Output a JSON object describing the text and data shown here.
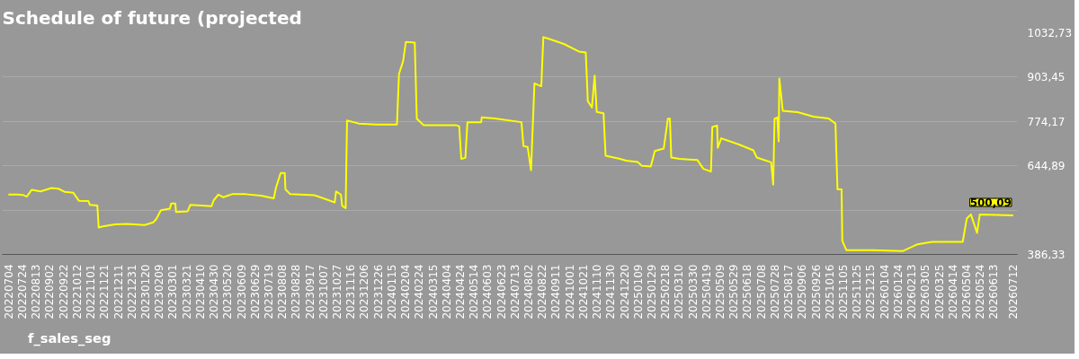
{
  "chart_data": {
    "type": "line",
    "title": "Schedule of future (projected",
    "x": [
      "2022-07-04",
      "2022-07-17",
      "2022-07-25",
      "2022-07-31",
      "2022-08-07",
      "2022-08-20",
      "2022-09-05",
      "2022-09-15",
      "2022-09-24",
      "2022-10-07",
      "2022-10-15",
      "2022-10-29",
      "2022-10-31",
      "2022-11-11",
      "2022-11-13",
      "2022-11-19",
      "2022-12-07",
      "2022-12-24",
      "2023-01-19",
      "2023-02-01",
      "2023-02-05",
      "2023-02-12",
      "2023-02-25",
      "2023-02-27",
      "2023-03-05",
      "2023-03-06",
      "2023-03-23",
      "2023-03-27",
      "2023-04-27",
      "2023-04-30",
      "2023-05-07",
      "2023-05-14",
      "2023-05-27",
      "2023-06-16",
      "2023-07-08",
      "2023-07-27",
      "2023-07-30",
      "2023-08-06",
      "2023-08-12",
      "2023-08-13",
      "2023-08-20",
      "2023-09-24",
      "2023-09-30",
      "2023-10-24",
      "2023-10-26",
      "2023-11-02",
      "2023-11-04",
      "2023-11-09",
      "2023-11-11",
      "2023-11-28",
      "2023-12-24",
      "2024-01-23",
      "2024-01-26",
      "2024-02-01",
      "2024-02-05",
      "2024-02-18",
      "2024-02-21",
      "2024-03-02",
      "2024-04-19",
      "2024-04-23",
      "2024-04-26",
      "2024-05-02",
      "2024-05-05",
      "2024-05-25",
      "2024-05-26",
      "2024-06-14",
      "2024-07-23",
      "2024-07-26",
      "2024-08-01",
      "2024-08-06",
      "2024-08-11",
      "2024-08-17",
      "2024-08-21",
      "2024-08-24",
      "2024-09-01",
      "2024-09-23",
      "2024-10-15",
      "2024-10-25",
      "2024-10-28",
      "2024-11-03",
      "2024-11-07",
      "2024-11-10",
      "2024-11-20",
      "2024-11-23",
      "2024-12-14",
      "2024-12-23",
      "2025-01-09",
      "2025-01-15",
      "2025-01-28",
      "2025-02-03",
      "2025-02-16",
      "2025-02-22",
      "2025-02-25",
      "2025-02-27",
      "2025-03-11",
      "2025-04-06",
      "2025-04-15",
      "2025-04-26",
      "2025-04-28",
      "2025-05-05",
      "2025-05-06",
      "2025-05-11",
      "2025-06-06",
      "2025-06-27",
      "2025-07-02",
      "2025-07-23",
      "2025-07-26",
      "2025-07-28",
      "2025-08-01",
      "2025-08-03",
      "2025-08-04",
      "2025-08-09",
      "2025-08-31",
      "2025-09-23",
      "2025-10-15",
      "2025-10-25",
      "2025-10-28",
      "2025-11-03",
      "2025-11-04",
      "2025-11-10",
      "2025-12-19",
      "2026-01-31",
      "2026-02-22",
      "2026-03-15",
      "2026-04-29",
      "2026-05-05",
      "2026-05-11",
      "2026-05-20",
      "2026-05-24",
      "2026-07-12"
    ],
    "series": [
      {
        "name": "f_sales_seg",
        "color": "#ffff00",
        "values": [
          561,
          561,
          560,
          555,
          575,
          570,
          580,
          578,
          569,
          566,
          543,
          542,
          531,
          529,
          465,
          468,
          474,
          475,
          472,
          480,
          489,
          515,
          520,
          535,
          535,
          510,
          512,
          531,
          527,
          544,
          561,
          553,
          562,
          562,
          558,
          550,
          580,
          624,
          624,
          576,
          562,
          559,
          555,
          538,
          570,
          561,
          528,
          521,
          777,
          768,
          765,
          765,
          913,
          950,
          1006,
          1004,
          782,
          763,
          763,
          760,
          665,
          668,
          772,
          772,
          786,
          783,
          772,
          702,
          700,
          632,
          885,
          880,
          877,
          1020,
          1015,
          1000,
          978,
          975,
          833,
          815,
          908,
          802,
          798,
          674,
          665,
          660,
          656,
          645,
          643,
          688,
          695,
          782,
          782,
          669,
          665,
          662,
          636,
          628,
          758,
          762,
          697,
          725,
          707,
          690,
          669,
          655,
          590,
          782,
          786,
          716,
          899,
          805,
          801,
          788,
          783,
          768,
          576,
          576,
          426,
          399,
          399,
          396,
          416,
          423,
          423,
          491,
          503,
          449,
          503,
          500.09
        ]
      }
    ],
    "xlim": [
      "2022-06-25",
      "2026-07-18"
    ],
    "xticks": [
      {
        "value": "2022-07-04",
        "label": "20220704"
      },
      {
        "value": "2022-07-24",
        "label": "20220724"
      },
      {
        "value": "2022-08-13",
        "label": "20220813"
      },
      {
        "value": "2022-09-02",
        "label": "20220902"
      },
      {
        "value": "2022-09-22",
        "label": "20220922"
      },
      {
        "value": "2022-10-12",
        "label": "20221012"
      },
      {
        "value": "2022-11-01",
        "label": "20221101"
      },
      {
        "value": "2022-11-21",
        "label": "20221121"
      },
      {
        "value": "2022-12-11",
        "label": "20221211"
      },
      {
        "value": "2022-12-31",
        "label": "20221231"
      },
      {
        "value": "2023-01-20",
        "label": "20230120"
      },
      {
        "value": "2023-02-09",
        "label": "20230209"
      },
      {
        "value": "2023-03-01",
        "label": "20230301"
      },
      {
        "value": "2023-03-21",
        "label": "20230321"
      },
      {
        "value": "2023-04-10",
        "label": "20230410"
      },
      {
        "value": "2023-04-30",
        "label": "20230430"
      },
      {
        "value": "2023-05-20",
        "label": "20230520"
      },
      {
        "value": "2023-06-09",
        "label": "20230609"
      },
      {
        "value": "2023-06-29",
        "label": "20230629"
      },
      {
        "value": "2023-07-19",
        "label": "20230719"
      },
      {
        "value": "2023-08-08",
        "label": "20230808"
      },
      {
        "value": "2023-08-28",
        "label": "20230828"
      },
      {
        "value": "2023-09-17",
        "label": "20230917"
      },
      {
        "value": "2023-10-07",
        "label": "20231007"
      },
      {
        "value": "2023-10-27",
        "label": "20231027"
      },
      {
        "value": "2023-11-16",
        "label": "20231116"
      },
      {
        "value": "2023-12-06",
        "label": "20231206"
      },
      {
        "value": "2023-12-26",
        "label": "20231226"
      },
      {
        "value": "2024-01-15",
        "label": "20240115"
      },
      {
        "value": "2024-02-04",
        "label": "20240204"
      },
      {
        "value": "2024-02-24",
        "label": "20240224"
      },
      {
        "value": "2024-03-15",
        "label": "20240315"
      },
      {
        "value": "2024-04-04",
        "label": "20240404"
      },
      {
        "value": "2024-04-24",
        "label": "20240424"
      },
      {
        "value": "2024-05-14",
        "label": "20240514"
      },
      {
        "value": "2024-06-03",
        "label": "20240603"
      },
      {
        "value": "2024-06-23",
        "label": "20240623"
      },
      {
        "value": "2024-07-13",
        "label": "20240713"
      },
      {
        "value": "2024-08-02",
        "label": "20240802"
      },
      {
        "value": "2024-08-22",
        "label": "20240822"
      },
      {
        "value": "2024-09-11",
        "label": "20240911"
      },
      {
        "value": "2024-10-01",
        "label": "20241001"
      },
      {
        "value": "2024-10-21",
        "label": "20241021"
      },
      {
        "value": "2024-11-10",
        "label": "20241110"
      },
      {
        "value": "2024-11-30",
        "label": "20241130"
      },
      {
        "value": "2024-12-20",
        "label": "20241220"
      },
      {
        "value": "2025-01-09",
        "label": "20250109"
      },
      {
        "value": "2025-01-29",
        "label": "20250129"
      },
      {
        "value": "2025-02-18",
        "label": "20250218"
      },
      {
        "value": "2025-03-10",
        "label": "20250310"
      },
      {
        "value": "2025-03-30",
        "label": "20250330"
      },
      {
        "value": "2025-04-19",
        "label": "20250419"
      },
      {
        "value": "2025-05-09",
        "label": "20250509"
      },
      {
        "value": "2025-05-29",
        "label": "20250529"
      },
      {
        "value": "2025-06-18",
        "label": "20250618"
      },
      {
        "value": "2025-07-08",
        "label": "20250708"
      },
      {
        "value": "2025-07-28",
        "label": "20250728"
      },
      {
        "value": "2025-08-17",
        "label": "20250817"
      },
      {
        "value": "2025-09-06",
        "label": "20250906"
      },
      {
        "value": "2025-09-26",
        "label": "20250926"
      },
      {
        "value": "2025-10-16",
        "label": "20251016"
      },
      {
        "value": "2025-11-05",
        "label": "20251105"
      },
      {
        "value": "2025-11-25",
        "label": "20251125"
      },
      {
        "value": "2025-12-15",
        "label": "20251215"
      },
      {
        "value": "2026-01-04",
        "label": "20260104"
      },
      {
        "value": "2026-01-24",
        "label": "20260124"
      },
      {
        "value": "2026-02-13",
        "label": "20260213"
      },
      {
        "value": "2026-03-05",
        "label": "20260305"
      },
      {
        "value": "2026-03-25",
        "label": "20260325"
      },
      {
        "value": "2026-04-14",
        "label": "20260414"
      },
      {
        "value": "2026-05-04",
        "label": "20260504"
      },
      {
        "value": "2026-05-24",
        "label": "20260524"
      },
      {
        "value": "2026-06-13",
        "label": "20260613"
      },
      {
        "value": "2026-07-12",
        "label": "20260712"
      }
    ],
    "ylim": [
      386.33,
      1032.73
    ],
    "yticks": [
      {
        "value": 386.33,
        "label": "386,33"
      },
      {
        "value": 515.61,
        "label": null
      },
      {
        "value": 644.89,
        "label": "644,89"
      },
      {
        "value": 774.17,
        "label": "774,17"
      },
      {
        "value": 903.45,
        "label": "903,45"
      },
      {
        "value": 1032.73,
        "label": "1032,73"
      }
    ],
    "annotations": [
      {
        "text": "500,09",
        "x": "2026-07-12",
        "y": 500.09
      }
    ],
    "grid": "y",
    "legend": "bottom left",
    "marker": "none",
    "line_style": "solid"
  }
}
